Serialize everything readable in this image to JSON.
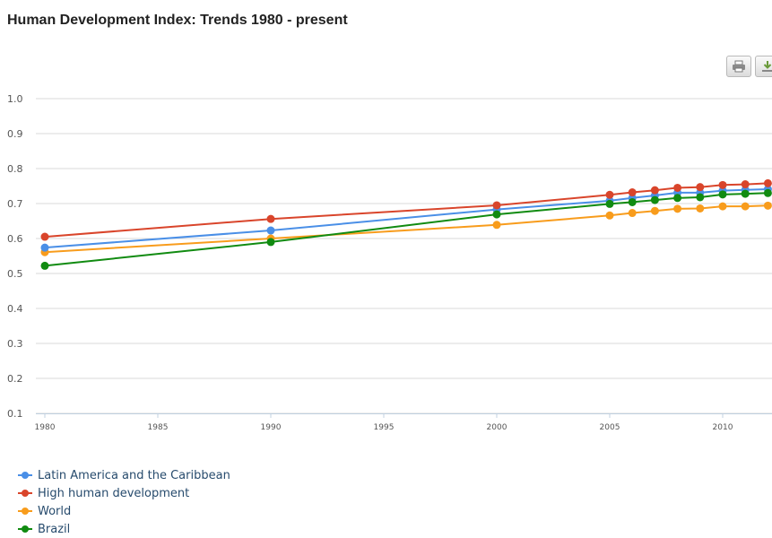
{
  "title": "Human Development Index: Trends 1980 - present",
  "toolbar": {
    "print_icon": "printer-icon",
    "download_icon": "download-icon"
  },
  "chart_data": {
    "type": "line",
    "title": "Human Development Index: Trends 1980 - present",
    "xlim": [
      1980,
      2012
    ],
    "ylim": [
      0.1,
      1.0
    ],
    "x_ticks": [
      1980,
      1985,
      1990,
      1995,
      2000,
      2005,
      2010
    ],
    "y_ticks": [
      "0.1",
      "0.2",
      "0.3",
      "0.4",
      "0.5",
      "0.6",
      "0.7",
      "0.8",
      "0.9",
      "1.0"
    ],
    "grid": true,
    "legend_position": "bottom-left",
    "x": [
      1980,
      1990,
      2000,
      2005,
      2006,
      2007,
      2008,
      2009,
      2010,
      2011,
      2012
    ],
    "series": [
      {
        "name": "Latin America and the Caribbean",
        "color": "#4a8fe7",
        "values": [
          0.574,
          0.623,
          0.683,
          0.708,
          0.716,
          0.723,
          0.731,
          0.731,
          0.737,
          0.739,
          0.741
        ]
      },
      {
        "name": "High human development",
        "color": "#d9452b",
        "values": [
          0.605,
          0.656,
          0.695,
          0.725,
          0.732,
          0.738,
          0.745,
          0.747,
          0.753,
          0.755,
          0.758
        ]
      },
      {
        "name": "World",
        "color": "#f89c1c",
        "values": [
          0.561,
          0.6,
          0.639,
          0.666,
          0.673,
          0.679,
          0.685,
          0.686,
          0.692,
          0.692,
          0.694
        ]
      },
      {
        "name": "Brazil",
        "color": "#118b11",
        "values": [
          0.522,
          0.59,
          0.669,
          0.699,
          0.704,
          0.71,
          0.716,
          0.718,
          0.726,
          0.728,
          0.73
        ]
      }
    ]
  }
}
